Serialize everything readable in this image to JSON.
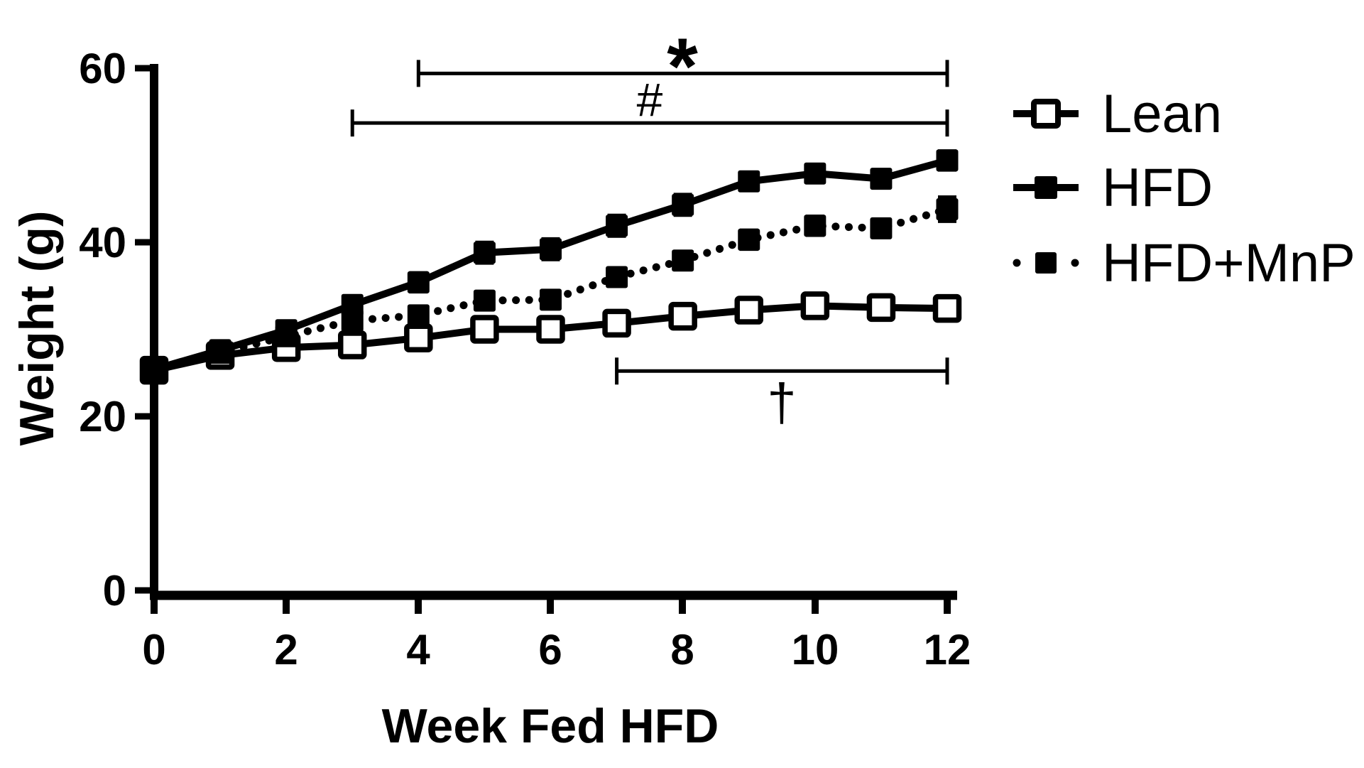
{
  "figure": {
    "background_color": "#ffffff",
    "ink_color": "#000000"
  },
  "chart_data": {
    "type": "line",
    "title": "",
    "xlabel": "Week Fed HFD",
    "ylabel": "Weight (g)",
    "xlim": [
      0,
      12
    ],
    "ylim": [
      0,
      60
    ],
    "grid": false,
    "legend_position": "right-top",
    "x": [
      0,
      1,
      2,
      3,
      4,
      5,
      6,
      7,
      8,
      9,
      10,
      11,
      12
    ],
    "x_ticks": [
      0,
      2,
      4,
      6,
      8,
      10,
      12
    ],
    "y_ticks": [
      0,
      20,
      40,
      60
    ],
    "series": [
      {
        "name": "Lean",
        "line": "solid",
        "marker": "open-square",
        "values": [
          25.3,
          27.0,
          27.9,
          28.2,
          29.0,
          30.0,
          30.0,
          30.7,
          31.5,
          32.2,
          32.7,
          32.5,
          32.4
        ],
        "errors": [
          0.4,
          0.4,
          0.5,
          0.5,
          0.5,
          0.5,
          0.6,
          0.5,
          0.5,
          0.5,
          0.5,
          0.5,
          0.5
        ]
      },
      {
        "name": "HFD",
        "line": "solid",
        "marker": "filled-square",
        "values": [
          25.4,
          27.6,
          29.9,
          32.8,
          35.4,
          38.8,
          39.2,
          41.9,
          44.3,
          47.0,
          47.9,
          47.3,
          49.4
        ],
        "errors": [
          0.4,
          0.6,
          0.7,
          0.9,
          1.0,
          1.1,
          1.1,
          1.1,
          1.1,
          0.9,
          0.8,
          0.8,
          1.0
        ]
      },
      {
        "name": "HFD+MnP",
        "line": "dotted",
        "marker": "filled-square",
        "values": [
          25.3,
          27.3,
          29.2,
          31.0,
          31.6,
          33.3,
          33.4,
          36.0,
          37.9,
          40.3,
          41.9,
          41.6,
          43.8
        ],
        "errors": [
          0.4,
          0.5,
          0.6,
          0.7,
          0.8,
          0.9,
          0.9,
          0.9,
          0.9,
          1.0,
          1.0,
          0.9,
          1.3
        ]
      }
    ],
    "annotations": [
      {
        "symbol": "*",
        "x_start": 4,
        "x_end": 12,
        "y": 59.4
      },
      {
        "symbol": "#",
        "x_start": 3,
        "x_end": 12,
        "y": 53.7
      },
      {
        "symbol": "†",
        "x_start": 7,
        "x_end": 12,
        "y": 25.2
      }
    ]
  }
}
